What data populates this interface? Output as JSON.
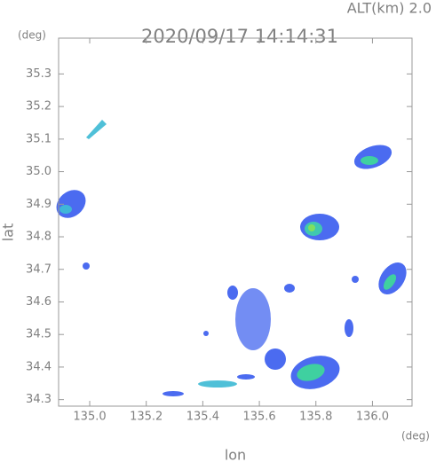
{
  "chart_data": {
    "type": "map",
    "title": "2020/09/17 14:14:31",
    "annotation": "ALT(km) 2.0",
    "x_label": "lon",
    "y_label": "lat",
    "x_unit": "(deg)",
    "y_unit": "(deg)",
    "xlim": [
      134.89,
      136.14
    ],
    "ylim": [
      34.28,
      35.41
    ],
    "xticks": [
      {
        "value": 135,
        "label": "135.0"
      },
      {
        "value": 135.2,
        "label": "135.2"
      },
      {
        "value": 135.4,
        "label": "135.4"
      },
      {
        "value": 135.6,
        "label": "135.6"
      },
      {
        "value": 135.8,
        "label": "135.8"
      },
      {
        "value": 136,
        "label": "136.0"
      }
    ],
    "yticks": [
      34.3,
      34.4,
      34.5,
      34.6,
      34.7,
      34.8,
      34.9,
      {
        "value": 35,
        "label": "35.0"
      },
      35.1,
      35.2,
      35.3
    ],
    "frame_color": "#999999"
  }
}
